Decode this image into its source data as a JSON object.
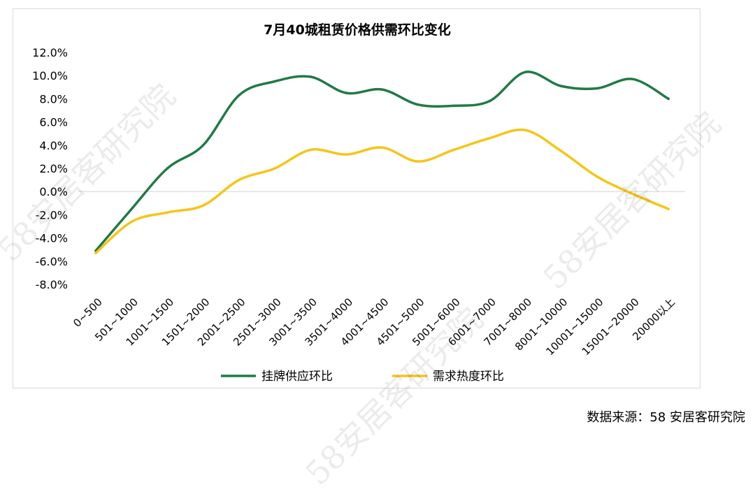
{
  "watermark": "58安居客研究院",
  "source": "数据来源：58 安居客研究院",
  "colors": {
    "supply": "#217a45",
    "demand": "#f5c518",
    "grid": "#d9d9d9"
  },
  "chart_data": {
    "type": "line",
    "title": "7月40城租赁价格供需环比变化",
    "categories": [
      "0~500",
      "501~1000",
      "1001~1500",
      "1501~2000",
      "2001~2500",
      "2501~3000",
      "3001~3500",
      "3501~4000",
      "4001~4500",
      "4501~5000",
      "5001~6000",
      "6001~7000",
      "7001~8000",
      "8001~10000",
      "10001~15000",
      "15001~20000",
      "20000以上"
    ],
    "series": [
      {
        "name": "挂牌供应环比",
        "values": [
          -5.1,
          -1.5,
          2.0,
          4.0,
          8.3,
          9.5,
          9.9,
          8.5,
          8.8,
          7.5,
          7.4,
          7.8,
          10.3,
          9.1,
          8.9,
          9.7,
          8.0
        ]
      },
      {
        "name": "需求热度环比",
        "values": [
          -5.3,
          -2.6,
          -1.8,
          -1.2,
          1.0,
          2.0,
          3.6,
          3.2,
          3.8,
          2.6,
          3.6,
          4.6,
          5.3,
          3.5,
          1.3,
          -0.2,
          -1.5
        ]
      }
    ],
    "ylim": [
      -8,
      12
    ],
    "yticks": [
      "12.0%",
      "10.0%",
      "8.0%",
      "6.0%",
      "4.0%",
      "2.0%",
      "0.0%",
      "-2.0%",
      "-4.0%",
      "-6.0%",
      "-8.0%"
    ],
    "legend_position": "bottom",
    "grid": false
  }
}
